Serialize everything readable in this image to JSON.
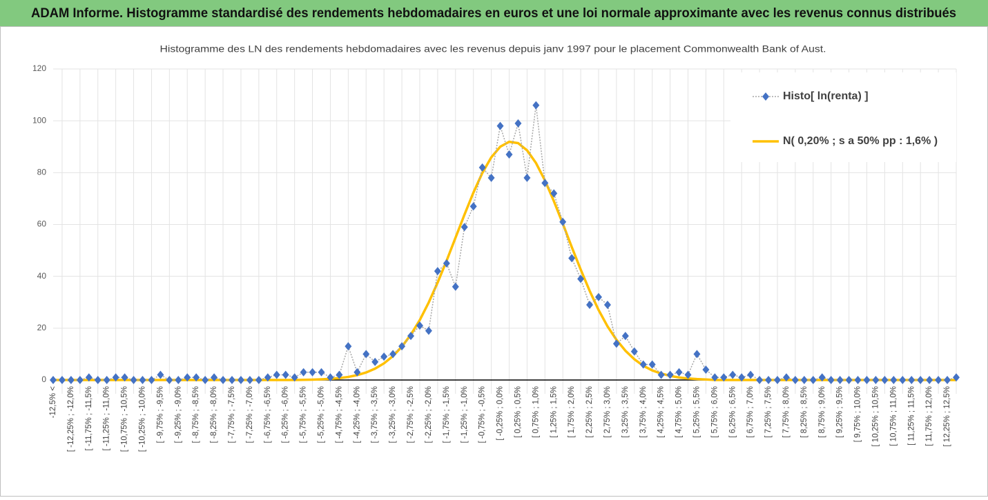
{
  "header": {
    "title": "ADAM Informe. Histogramme standardisé des rendements hebdomadaires en euros et une loi normale approximante avec les revenus connus distribués"
  },
  "chart_data": {
    "type": "line",
    "title": "Histogramme des LN des rendements hebdomadaires avec les revenus depuis janv 1997 pour le placement Commonwealth Bank of Aust.",
    "categories": [
      "-12,5% <",
      null,
      "[ -12,25% ; -12,0%",
      null,
      "[ -11,75% ; -11,5%",
      null,
      "[ -11,25% ; -11,0%",
      null,
      "[ -10,75% ; -10,5%",
      null,
      "[ -10,25% ; -10,0%",
      null,
      "[ -9,75% ; -9,5%",
      null,
      "[ -9,25% ; -9,0%",
      null,
      "[ -8,75% ; -8,5%",
      null,
      "[ -8,25% ; -8,0%",
      null,
      "[ -7,75% ; -7,5%",
      null,
      "[ -7,25% ; -7,0%",
      null,
      "[ -6,75% ; -6,5%",
      null,
      "[ -6,25% ; -6,0%",
      null,
      "[ -5,75% ; -5,5%",
      null,
      "[ -5,25% ; -5,0%",
      null,
      "[ -4,75% ; -4,5%",
      null,
      "[ -4,25% ; -4,0%",
      null,
      "[ -3,75% ; -3,5%",
      null,
      "[ -3,25% ; -3,0%",
      null,
      "[ -2,75% ; -2,5%",
      null,
      "[ -2,25% ; -2,0%",
      null,
      "[ -1,75% ; -1,5%",
      null,
      "[ -1,25% ; -1,0%",
      null,
      "[ -0,75% ; -0,5%",
      null,
      "[ -0,25% ; 0,0%",
      null,
      "[ 0,25% ; 0,5%",
      null,
      "[ 0,75% ; 1,0%",
      null,
      "[ 1,25% ; 1,5%",
      null,
      "[ 1,75% ; 2,0%",
      null,
      "[ 2,25% ; 2,5%",
      null,
      "[ 2,75% ; 3,0%",
      null,
      "[ 3,25% ; 3,5%",
      null,
      "[ 3,75% ; 4,0%",
      null,
      "[ 4,25% ; 4,5%",
      null,
      "[ 4,75% ; 5,0%",
      null,
      "[ 5,25% ; 5,5%",
      null,
      "[ 5,75% ; 6,0%",
      null,
      "[ 6,25% ; 6,5%",
      null,
      "[ 6,75% ; 7,0%",
      null,
      "[ 7,25% ; 7,5%",
      null,
      "[ 7,75% ; 8,0%",
      null,
      "[ 8,25% ; 8,5%",
      null,
      "[ 8,75% ; 9,0%",
      null,
      "[ 9,25% ; 9,5%",
      null,
      "[ 9,75% ; 10,0%",
      null,
      "[ 10,25% ; 10,5%",
      null,
      "[ 10,75% ; 11,0%",
      null,
      "[ 11,25% ; 11,5%",
      null,
      "[ 11,75% ; 12,0%",
      null,
      "[ 12,25% ; 12,5%",
      null
    ],
    "series": [
      {
        "name": "Histo[ ln(renta) ]",
        "color": "#4472c4",
        "line_color": "#a5a5a5",
        "marker": "diamond",
        "values": [
          0,
          0,
          0,
          0,
          1,
          0,
          0,
          1,
          1,
          0,
          0,
          0,
          2,
          0,
          0,
          1,
          1,
          0,
          1,
          0,
          0,
          0,
          0,
          0,
          1,
          2,
          2,
          1,
          3,
          3,
          3,
          1,
          2,
          13,
          3,
          10,
          7,
          9,
          10,
          13,
          17,
          21,
          19,
          42,
          45,
          36,
          59,
          67,
          82,
          78,
          98,
          87,
          99,
          78,
          106,
          76,
          72,
          61,
          47,
          39,
          29,
          32,
          29,
          14,
          17,
          11,
          6,
          6,
          2,
          2,
          3,
          2,
          10,
          4,
          1,
          1,
          2,
          1,
          2,
          0,
          0,
          0,
          1,
          0,
          0,
          0,
          1,
          0,
          0,
          0,
          0,
          0,
          0,
          0,
          0,
          0,
          0,
          0,
          0,
          0,
          0,
          1
        ]
      },
      {
        "name": "N( 0,20% ; s a 50% pp : 1,6% )",
        "color": "#ffc000",
        "marker": "none",
        "values": [
          0,
          0,
          0,
          0,
          0,
          0,
          0,
          0,
          0,
          0,
          0,
          0,
          0,
          0,
          0,
          0,
          0,
          0,
          0,
          0,
          0,
          0,
          0,
          0,
          0,
          0,
          0,
          0,
          0.07,
          0.14,
          0.25,
          0.43,
          0.72,
          1.18,
          1.88,
          2.9,
          4.38,
          6.43,
          9.22,
          12.85,
          17.48,
          23.1,
          29.9,
          37.6,
          46.0,
          54.9,
          63.8,
          72.3,
          79.9,
          85.9,
          90.0,
          91.9,
          91.4,
          88.6,
          83.7,
          77.0,
          69.0,
          60.3,
          51.3,
          42.6,
          34.4,
          27.0,
          20.7,
          15.5,
          11.3,
          8.0,
          5.5,
          3.7,
          2.5,
          1.6,
          0.97,
          0.59,
          0.35,
          0.2,
          0,
          0,
          0,
          0,
          0,
          0,
          0,
          0,
          0,
          0,
          0,
          0,
          0,
          0,
          0,
          0,
          0,
          0,
          0,
          0,
          0,
          0,
          0,
          0,
          0,
          0,
          0,
          0
        ]
      }
    ],
    "ylim": [
      0,
      120
    ],
    "yticks": [
      0,
      20,
      40,
      60,
      80,
      100,
      120
    ],
    "grid": true,
    "legend": "top-right"
  }
}
